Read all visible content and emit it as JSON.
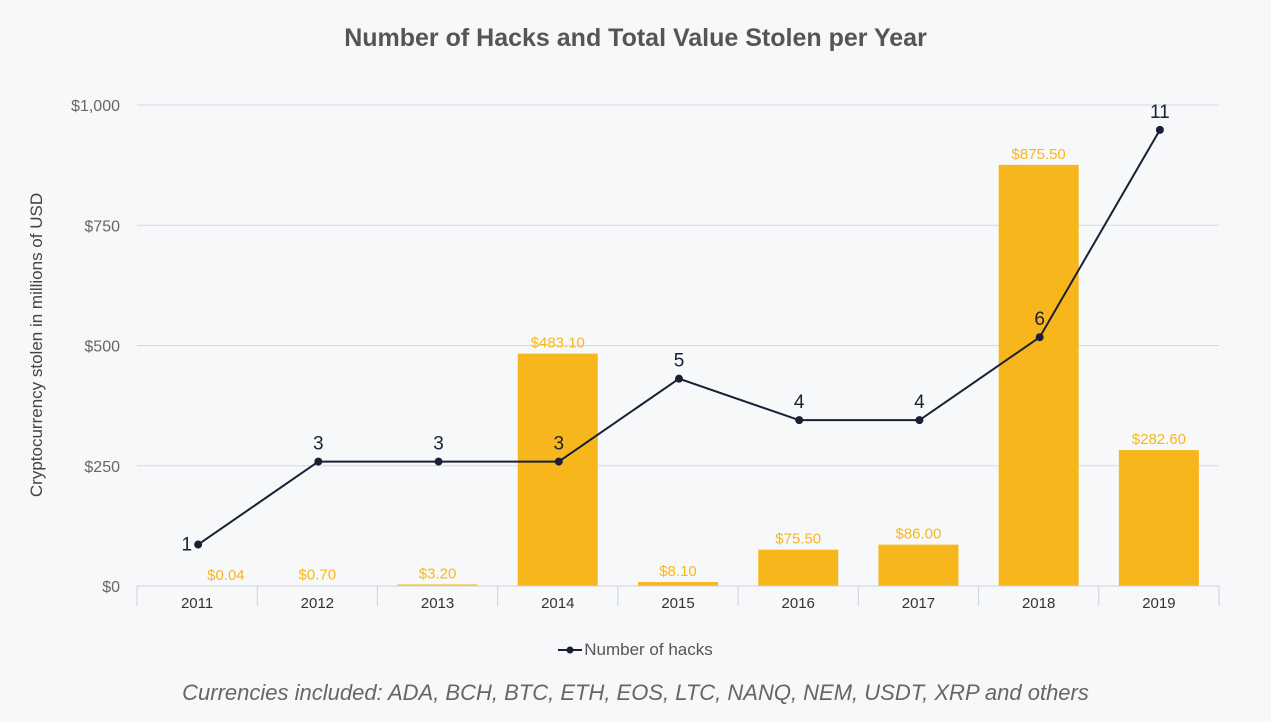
{
  "chart_data": {
    "type": "bar",
    "title": "Number of Hacks and Total Value Stolen per Year",
    "ylabel": "Cryptocurrency stolen in millions of USD",
    "xlabel": "",
    "categories": [
      "2011",
      "2012",
      "2013",
      "2014",
      "2015",
      "2016",
      "2017",
      "2018",
      "2019"
    ],
    "ylim": [
      0,
      1000
    ],
    "yticks": [
      0,
      250,
      500,
      750,
      1000
    ],
    "ytick_labels": [
      "$0",
      "$250",
      "$500",
      "$750",
      "$1,000"
    ],
    "grid": true,
    "legend_position": "bottom-center",
    "series": [
      {
        "type": "bar",
        "values": [
          0.04,
          0.7,
          3.2,
          483.1,
          8.1,
          75.5,
          86.0,
          875.5,
          282.6
        ],
        "labels": [
          "$0.04",
          "$0.70",
          "$3.20",
          "$483.10",
          "$8.10",
          "$75.50",
          "$86.00",
          "$875.50",
          "$282.60"
        ],
        "color": "#F7B71C"
      },
      {
        "type": "line",
        "name": "Number of hacks",
        "values": [
          1,
          3,
          3,
          3,
          5,
          4,
          4,
          6,
          11
        ],
        "labels": [
          "1",
          "3",
          "3",
          "3",
          "5",
          "4",
          "4",
          "6",
          "11"
        ],
        "color": "#1a1f36"
      }
    ]
  },
  "footnote": "Currencies included: ADA, BCH, BTC, ETH, EOS, LTC, NANQ, NEM, USDT, XRP and others",
  "colors": {
    "grid": "#d7d9de",
    "axis": "#cfd2d8",
    "background": "#f7f8fa"
  }
}
